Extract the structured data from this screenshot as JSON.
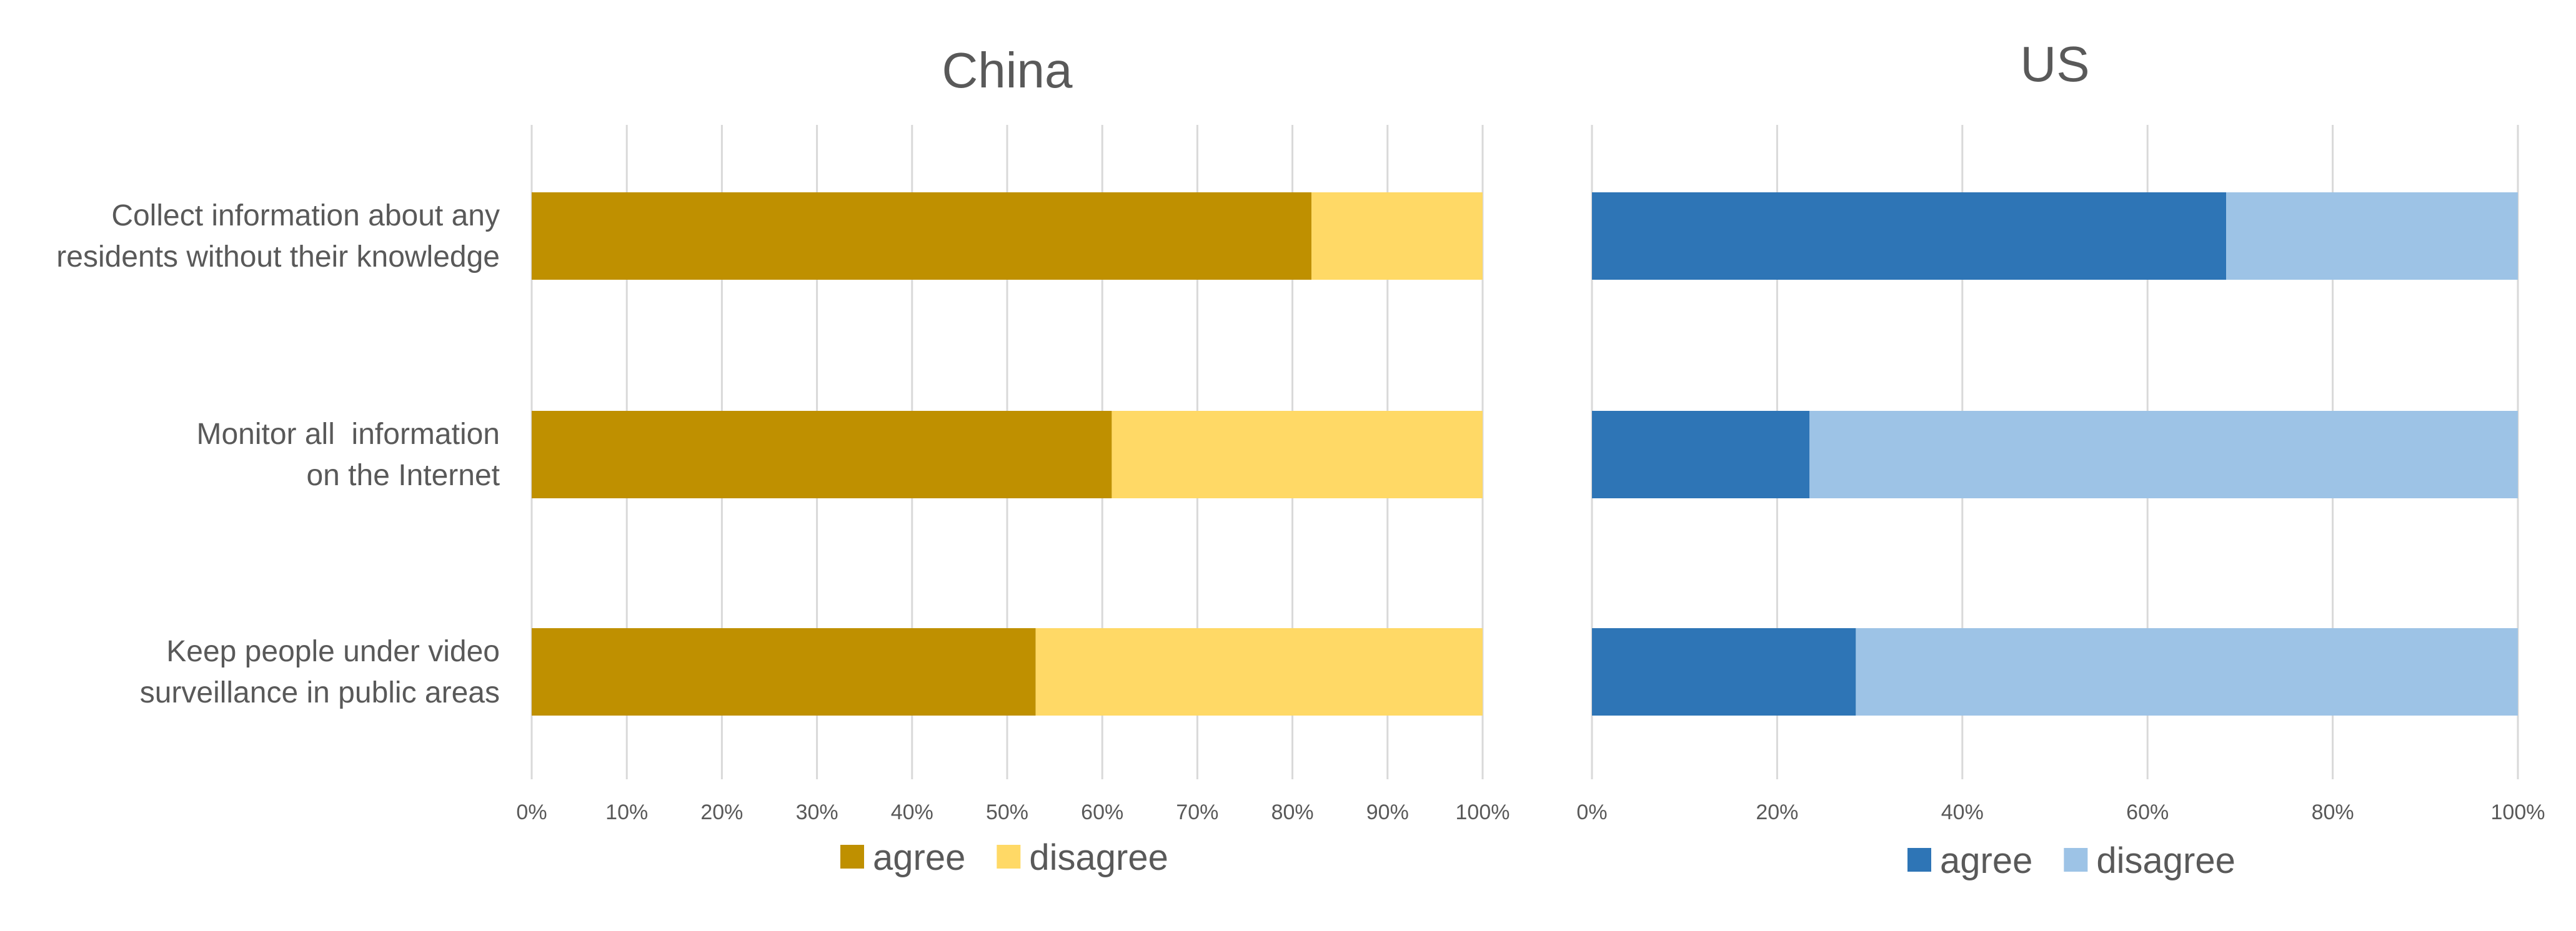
{
  "chart_data": [
    {
      "type": "bar",
      "orientation": "horizontal",
      "stacked": true,
      "title": "China",
      "categories": [
        [
          "Collect information about any",
          "residents without their knowledge"
        ],
        [
          "Monitor all  information",
          "on the Internet"
        ],
        [
          "Keep people under video",
          "surveillance in public areas"
        ]
      ],
      "series": [
        {
          "name": "agree",
          "color": "#bf9000",
          "values": [
            82,
            61,
            53
          ]
        },
        {
          "name": "disagree",
          "color": "#ffd966",
          "values": [
            18,
            39,
            47
          ]
        }
      ],
      "xlim": [
        0,
        100
      ],
      "xticks": [
        "0%",
        "10%",
        "20%",
        "30%",
        "40%",
        "50%",
        "60%",
        "70%",
        "80%",
        "90%",
        "100%"
      ],
      "grid": true,
      "legend_position": "bottom"
    },
    {
      "type": "bar",
      "orientation": "horizontal",
      "stacked": true,
      "title": "US",
      "categories": [
        [
          "Collect information about any",
          "residents without their knowledge"
        ],
        [
          "Monitor all  information",
          "on the Internet"
        ],
        [
          "Keep people under video",
          "surveillance in public areas"
        ]
      ],
      "series": [
        {
          "name": "agree",
          "color": "#2e75b6",
          "values": [
            68.5,
            23.5,
            28.5
          ]
        },
        {
          "name": "disagree",
          "color": "#9dc3e6",
          "values": [
            31.5,
            76.5,
            71.5
          ]
        }
      ],
      "xlim": [
        0,
        100
      ],
      "xticks": [
        "0%",
        "20%",
        "40%",
        "60%",
        "80%",
        "100%"
      ],
      "grid": true,
      "legend_position": "bottom"
    }
  ]
}
